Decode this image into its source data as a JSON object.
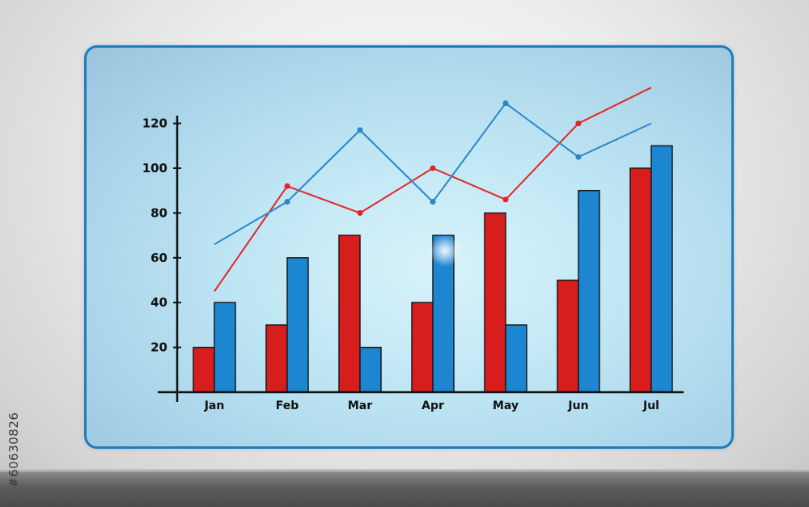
{
  "watermark_id": "#60630826",
  "chart_data": {
    "type": "bar",
    "categories": [
      "Jan",
      "Feb",
      "Mar",
      "Apr",
      "May",
      "Jun",
      "Jul"
    ],
    "yticks": [
      20,
      40,
      60,
      80,
      100,
      120
    ],
    "ylim": [
      0,
      120
    ],
    "series": [
      {
        "kind": "bar",
        "color": "#d81d1d",
        "values": [
          20,
          30,
          70,
          40,
          80,
          50,
          100
        ]
      },
      {
        "kind": "bar",
        "color": "#1d86d0",
        "values": [
          40,
          60,
          20,
          70,
          30,
          90,
          110
        ]
      },
      {
        "kind": "line",
        "color": "#e42424",
        "values": [
          45,
          92,
          80,
          100,
          86,
          120,
          136
        ]
      },
      {
        "kind": "line",
        "color": "#2a86c8",
        "values": [
          66,
          85,
          117,
          85,
          129,
          105,
          120
        ]
      }
    ],
    "grid": false,
    "legend": "none"
  }
}
